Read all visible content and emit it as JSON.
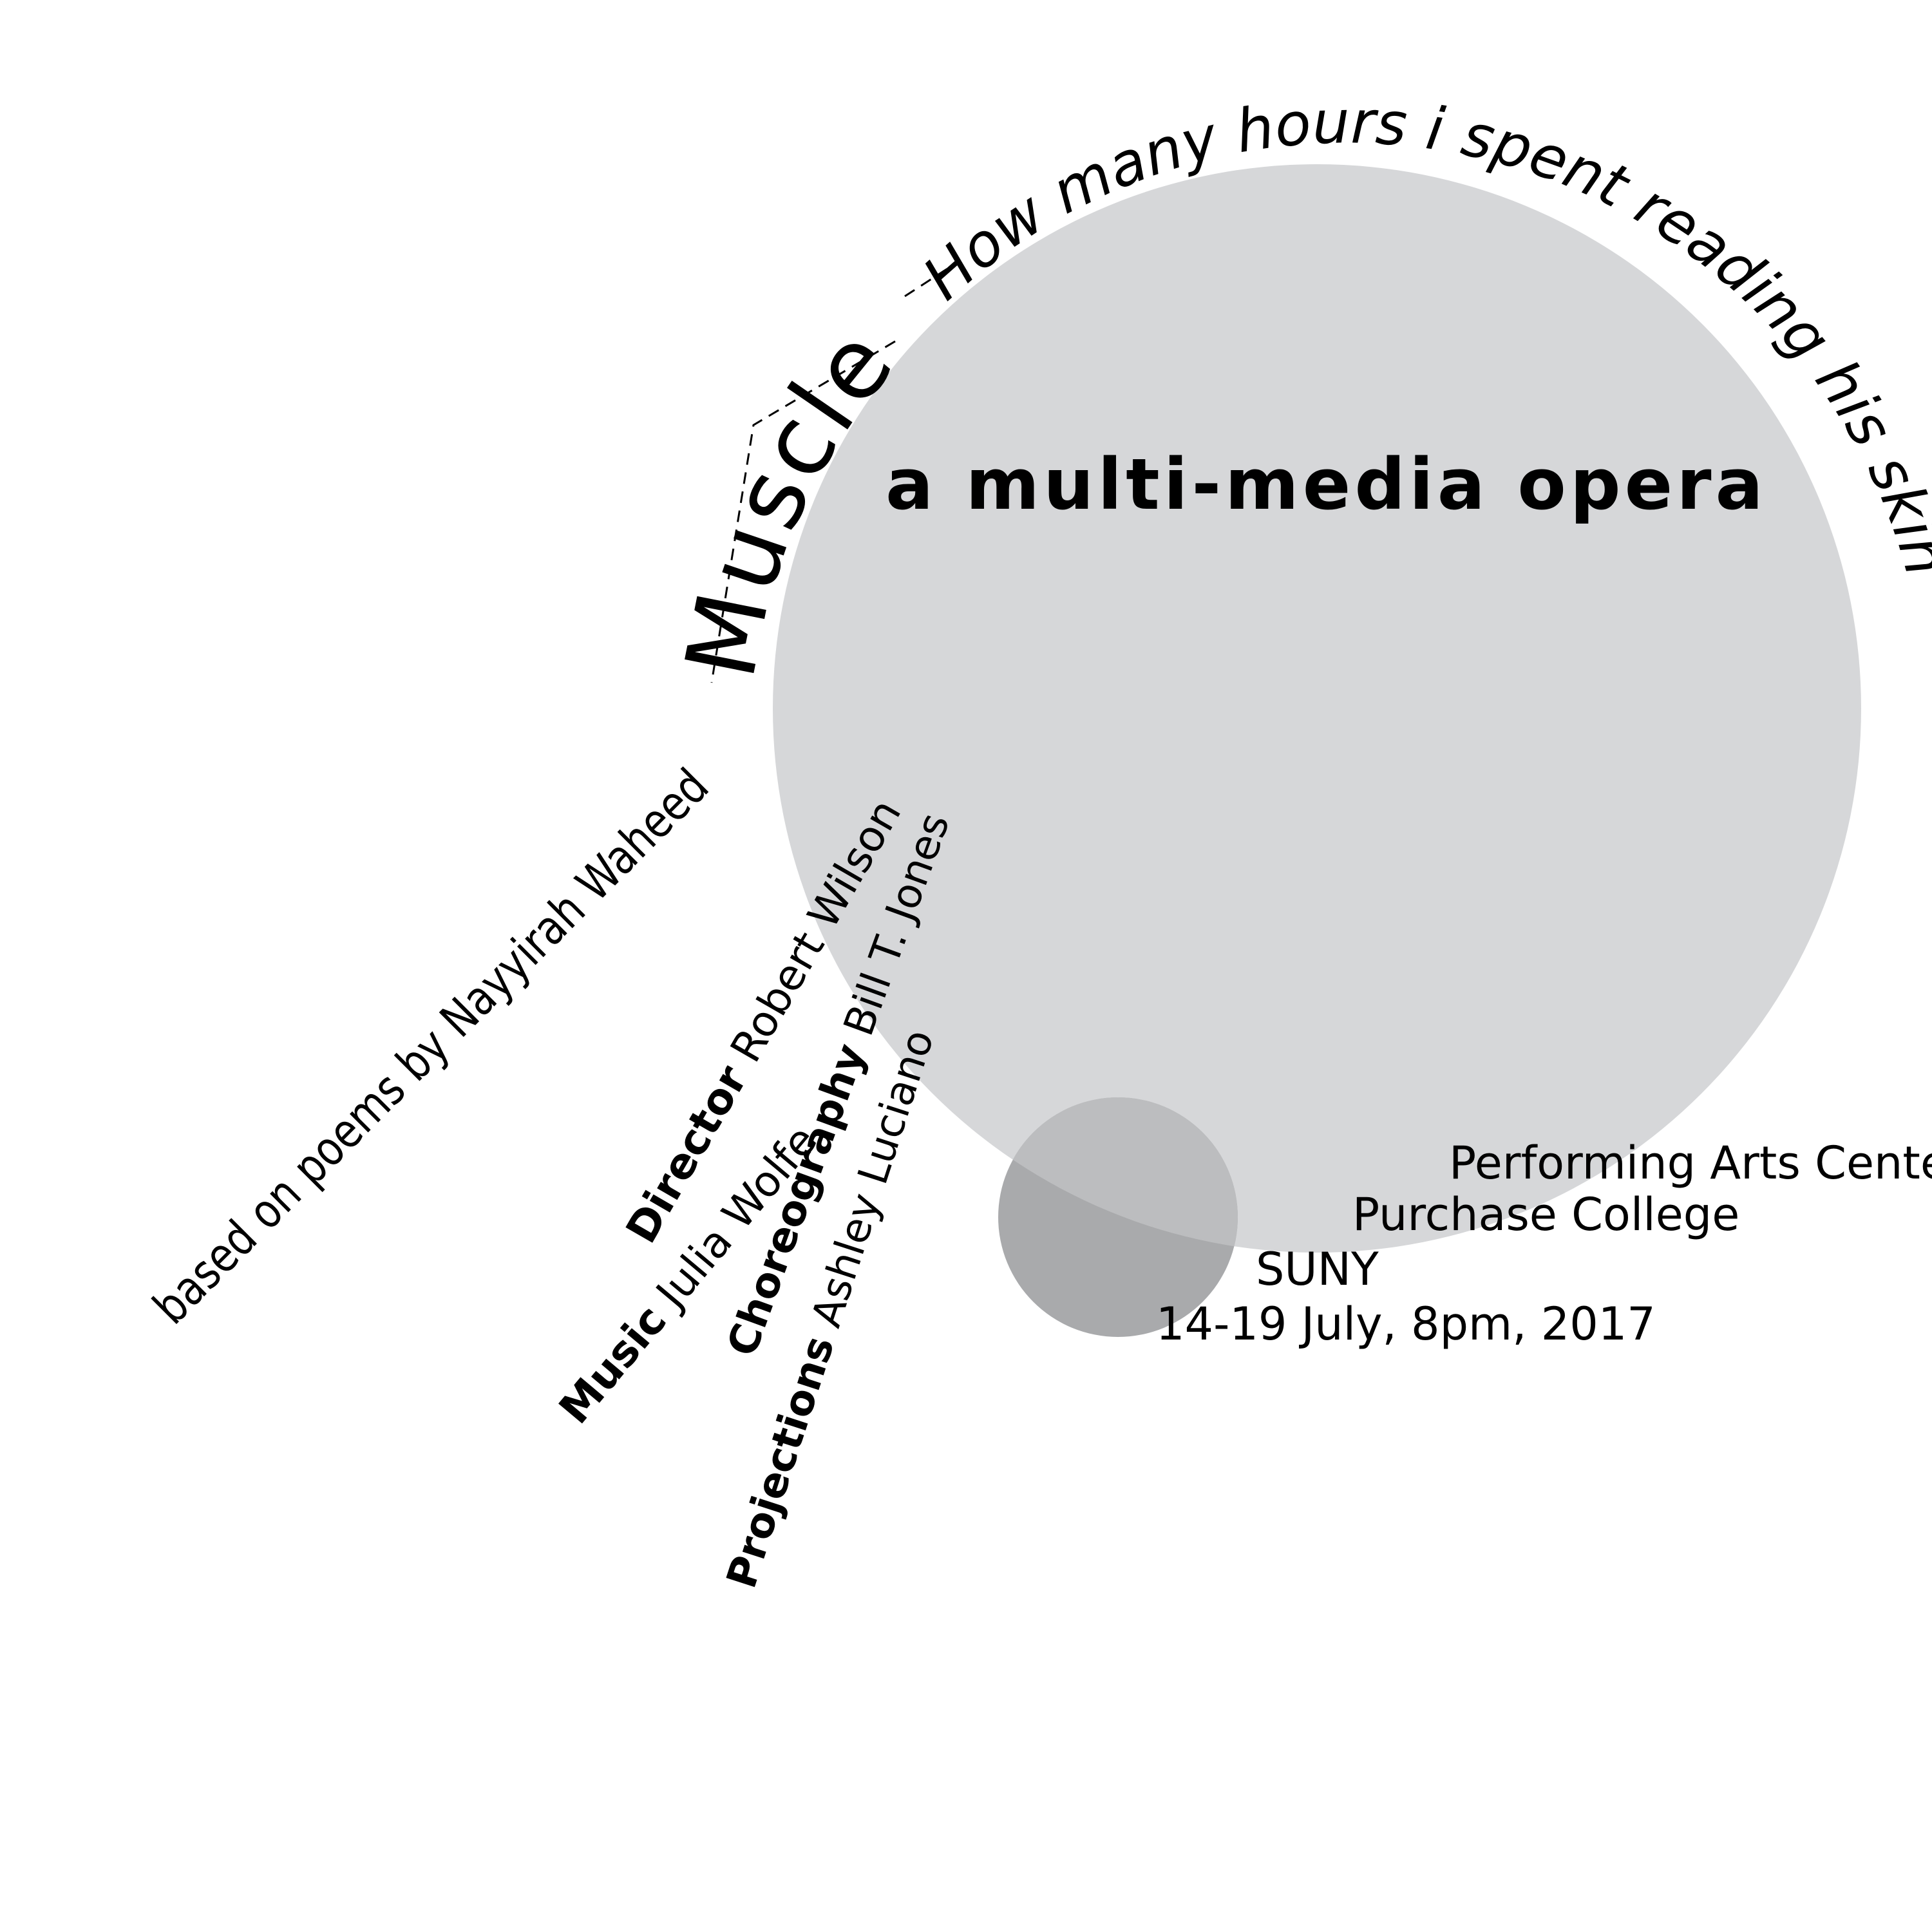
{
  "colors": {
    "background": "#ffffff",
    "big_circle": "#d6d7d9",
    "small_circle": "#a9aaac",
    "overlap": "#bcbdbf",
    "text": "#000000"
  },
  "title": "Muscle",
  "tagline": "How many hours i spent reading his skin",
  "subtitle": "a multi-media opera",
  "based_on": "based on poems by Nayyirah Waheed",
  "credits": {
    "director": {
      "label": "Director",
      "name": "Robert Wilson"
    },
    "music": {
      "label": "Music",
      "name": "Julia Wolfe"
    },
    "choreography": {
      "label": "Choreography",
      "name": "Bill T. Jones"
    },
    "projections": {
      "label": "Projections",
      "name": "Ashley Luciano"
    }
  },
  "venue": {
    "line1": "Performing Arts Center",
    "line2": "Purchase College",
    "line3": "SUNY",
    "dates": "14-19 July, 8pm, 2017"
  }
}
